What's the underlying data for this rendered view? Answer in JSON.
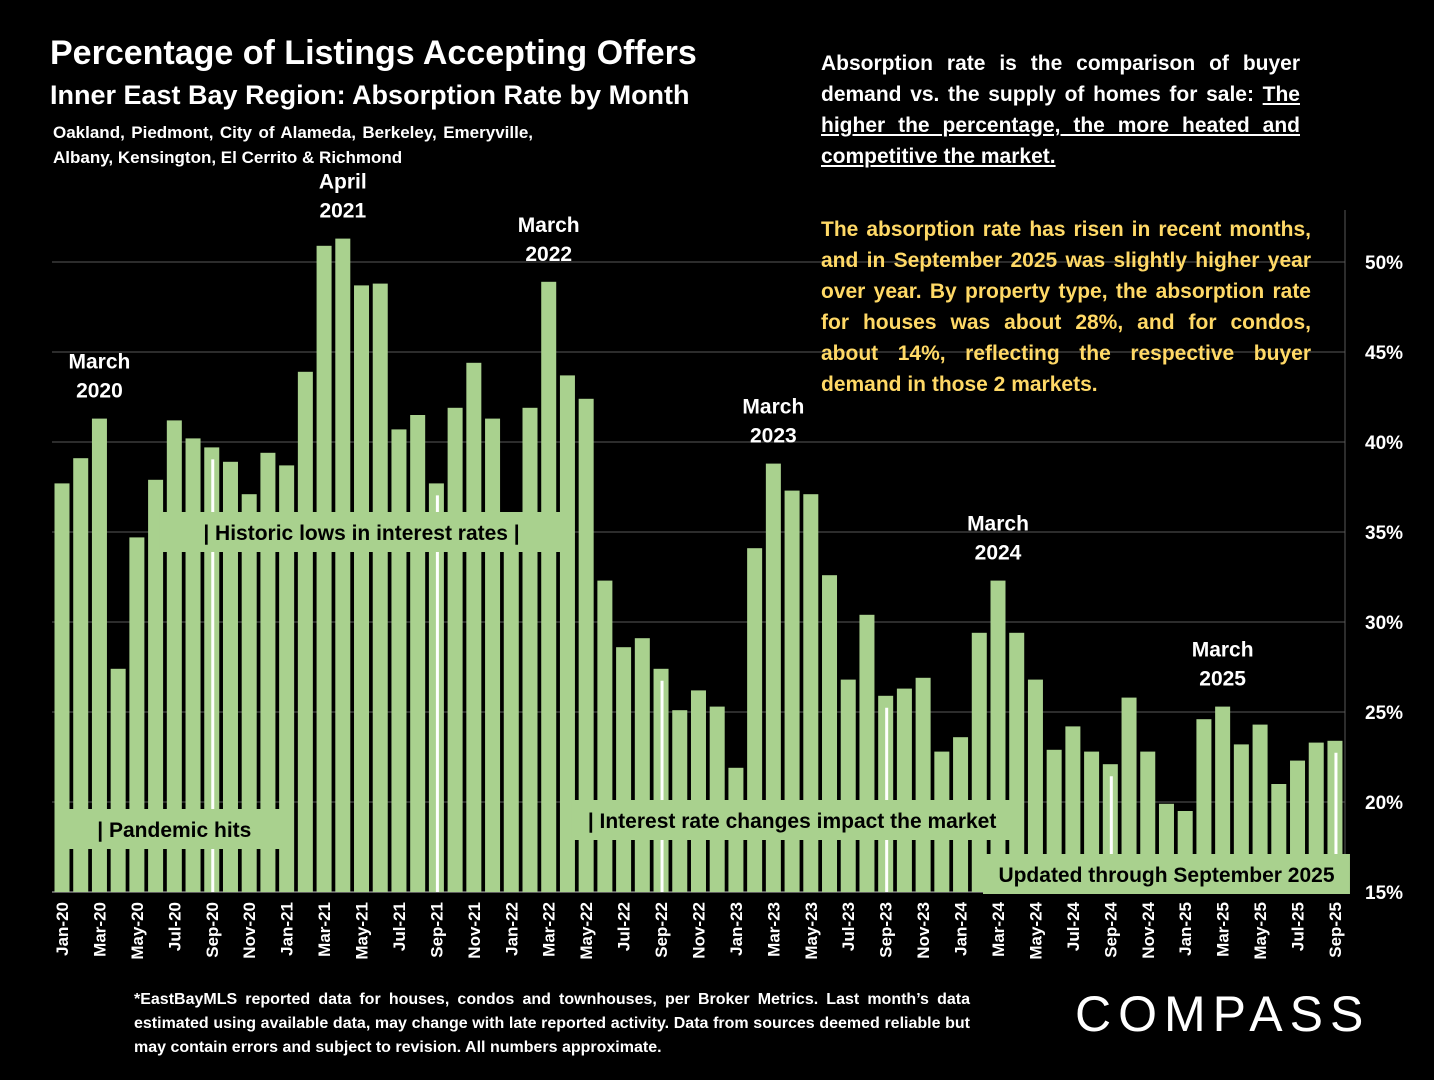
{
  "header": {
    "title": "Percentage of Listings Accepting Offers",
    "subtitle": "Inner East Bay Region:  Absorption Rate by Month",
    "cities": "Oakland, Piedmont, City of Alameda, Berkeley, Emeryville, Albany, Kensington, El Cerrito & Richmond"
  },
  "explanation": {
    "text": "Absorption rate is the comparison of buyer demand vs. the supply of homes for sale:",
    "underlined": "The higher the percentage, the more heated and competitive the market."
  },
  "summary": "The absorption rate has risen in recent months, and in September 2025 was slightly higher year over year. By property type, the absorption rate for houses was about 28%, and for condos, about 14%, reflecting the respective buyer demand in those 2 markets.",
  "footnote": "*EastBayMLS reported data for houses, condos and townhouses, per Broker Metrics. Last month’s data estimated using available data, may change with late reported activity. Data from sources deemed reliable but may contain errors and subject to revision. All numbers approximate.",
  "logo": "COMPASS",
  "colors": {
    "bar": "#a9d18e",
    "background": "#000000",
    "highlight": "#ffd966",
    "grid": "#595959"
  },
  "chart_data": {
    "type": "bar",
    "title": "Percentage of Listings Accepting Offers",
    "ylabel": "Absorption Rate",
    "ylim": [
      15,
      53
    ],
    "yticks": [
      15,
      20,
      25,
      30,
      35,
      40,
      45,
      50
    ],
    "ytick_labels": [
      "15%",
      "20%",
      "25%",
      "30%",
      "35%",
      "40%",
      "45%",
      "50%"
    ],
    "y_axis_side": "right",
    "grid": true,
    "categories": [
      "Jan-20",
      "Feb-20",
      "Mar-20",
      "Apr-20",
      "May-20",
      "Jun-20",
      "Jul-20",
      "Aug-20",
      "Sep-20",
      "Oct-20",
      "Nov-20",
      "Dec-20",
      "Jan-21",
      "Feb-21",
      "Mar-21",
      "Apr-21",
      "May-21",
      "Jun-21",
      "Jul-21",
      "Aug-21",
      "Sep-21",
      "Oct-21",
      "Nov-21",
      "Dec-21",
      "Jan-22",
      "Feb-22",
      "Mar-22",
      "Apr-22",
      "May-22",
      "Jun-22",
      "Jul-22",
      "Aug-22",
      "Sep-22",
      "Oct-22",
      "Nov-22",
      "Dec-22",
      "Jan-23",
      "Feb-23",
      "Mar-23",
      "Apr-23",
      "May-23",
      "Jun-23",
      "Jul-23",
      "Aug-23",
      "Sep-23",
      "Oct-23",
      "Nov-23",
      "Dec-23",
      "Jan-24",
      "Feb-24",
      "Mar-24",
      "Apr-24",
      "May-24",
      "Jun-24",
      "Jul-24",
      "Aug-24",
      "Sep-24",
      "Oct-24",
      "Nov-24",
      "Dec-24",
      "Jan-25",
      "Feb-25",
      "Mar-25",
      "Apr-25",
      "May-25",
      "Jun-25",
      "Jul-25",
      "Aug-25",
      "Sep-25"
    ],
    "values": [
      37.7,
      39.1,
      41.3,
      27.4,
      34.7,
      37.9,
      41.2,
      40.2,
      39.7,
      38.9,
      37.1,
      39.4,
      38.7,
      43.9,
      50.9,
      51.3,
      48.7,
      48.8,
      40.7,
      41.5,
      37.7,
      41.9,
      44.4,
      41.3,
      35.4,
      41.9,
      48.9,
      43.7,
      42.4,
      32.3,
      28.6,
      29.1,
      27.4,
      25.1,
      26.2,
      25.3,
      21.9,
      34.1,
      38.8,
      37.3,
      37.1,
      32.6,
      26.8,
      30.4,
      25.9,
      26.3,
      26.9,
      22.8,
      23.6,
      29.4,
      32.3,
      29.4,
      26.8,
      22.9,
      24.2,
      22.8,
      22.1,
      25.8,
      22.8,
      19.9,
      19.5,
      24.6,
      25.3,
      23.2,
      24.3,
      21.0,
      22.3,
      23.3,
      23.4
    ],
    "peak_labels": [
      {
        "month": "Mar-20",
        "line1": "March",
        "line2": "2020"
      },
      {
        "month": "Apr-21",
        "line1": "April",
        "line2": "2021"
      },
      {
        "month": "Mar-22",
        "line1": "March",
        "line2": "2022"
      },
      {
        "month": "Mar-23",
        "line1": "March",
        "line2": "2023"
      },
      {
        "month": "Mar-24",
        "line1": "March",
        "line2": "2024"
      },
      {
        "month": "Mar-25",
        "line1": "March",
        "line2": "2025"
      }
    ],
    "annotations": [
      {
        "text": "|   Historic lows in interest rates   |",
        "from": "Jul-20",
        "to": "Mar-22",
        "level": 35
      },
      {
        "text": "| Pandemic hits",
        "from": "Feb-20",
        "to": "Dec-20",
        "level": 18.5
      },
      {
        "text": "| Interest rate changes impact the market",
        "from": "May-22",
        "to": "Mar-24",
        "level": 19
      },
      {
        "text": "Updated through September 2025",
        "from": "Mar-24",
        "to": "Sep-25",
        "level": 16
      }
    ],
    "september_markers": [
      "Sep-20",
      "Sep-21",
      "Sep-22",
      "Sep-23",
      "Sep-24",
      "Sep-25"
    ]
  }
}
